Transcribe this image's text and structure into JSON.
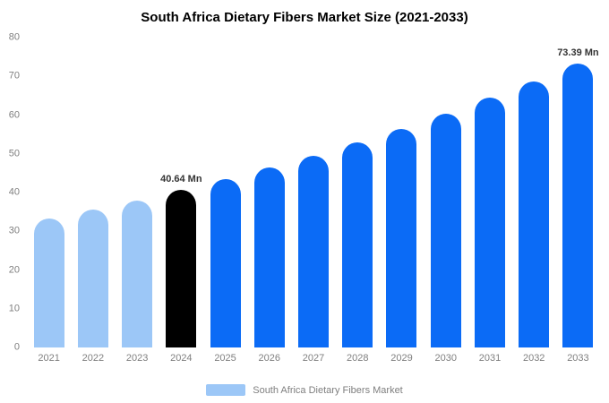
{
  "chart_data": {
    "type": "bar",
    "title": "South Africa Dietary Fibers Market Size (2021-2033)",
    "categories": [
      "2021",
      "2022",
      "2023",
      "2024",
      "2025",
      "2026",
      "2027",
      "2028",
      "2029",
      "2030",
      "2031",
      "2032",
      "2033"
    ],
    "values": [
      33.4,
      35.6,
      38.0,
      40.64,
      43.4,
      46.4,
      49.5,
      52.9,
      56.5,
      60.3,
      64.4,
      68.7,
      73.39
    ],
    "ylim": [
      0,
      80
    ],
    "yticks": [
      0,
      10,
      20,
      30,
      40,
      50,
      60,
      70,
      80
    ],
    "bar_colors": [
      "light_blue",
      "light_blue",
      "light_blue",
      "black",
      "blue",
      "blue",
      "blue",
      "blue",
      "blue",
      "blue",
      "blue",
      "blue",
      "blue"
    ],
    "colors": {
      "light_blue": "#9CC7F7",
      "black": "#000000",
      "blue": "#0B6BF6"
    },
    "annotations": [
      {
        "index": 3,
        "text": "40.64 Mn"
      },
      {
        "index": 12,
        "text": "73.39 Mn"
      }
    ],
    "grid": false,
    "legend_position": "bottom",
    "legend": {
      "label": "South Africa Dietary Fibers Market",
      "swatch_color": "#9CC7F7"
    }
  }
}
